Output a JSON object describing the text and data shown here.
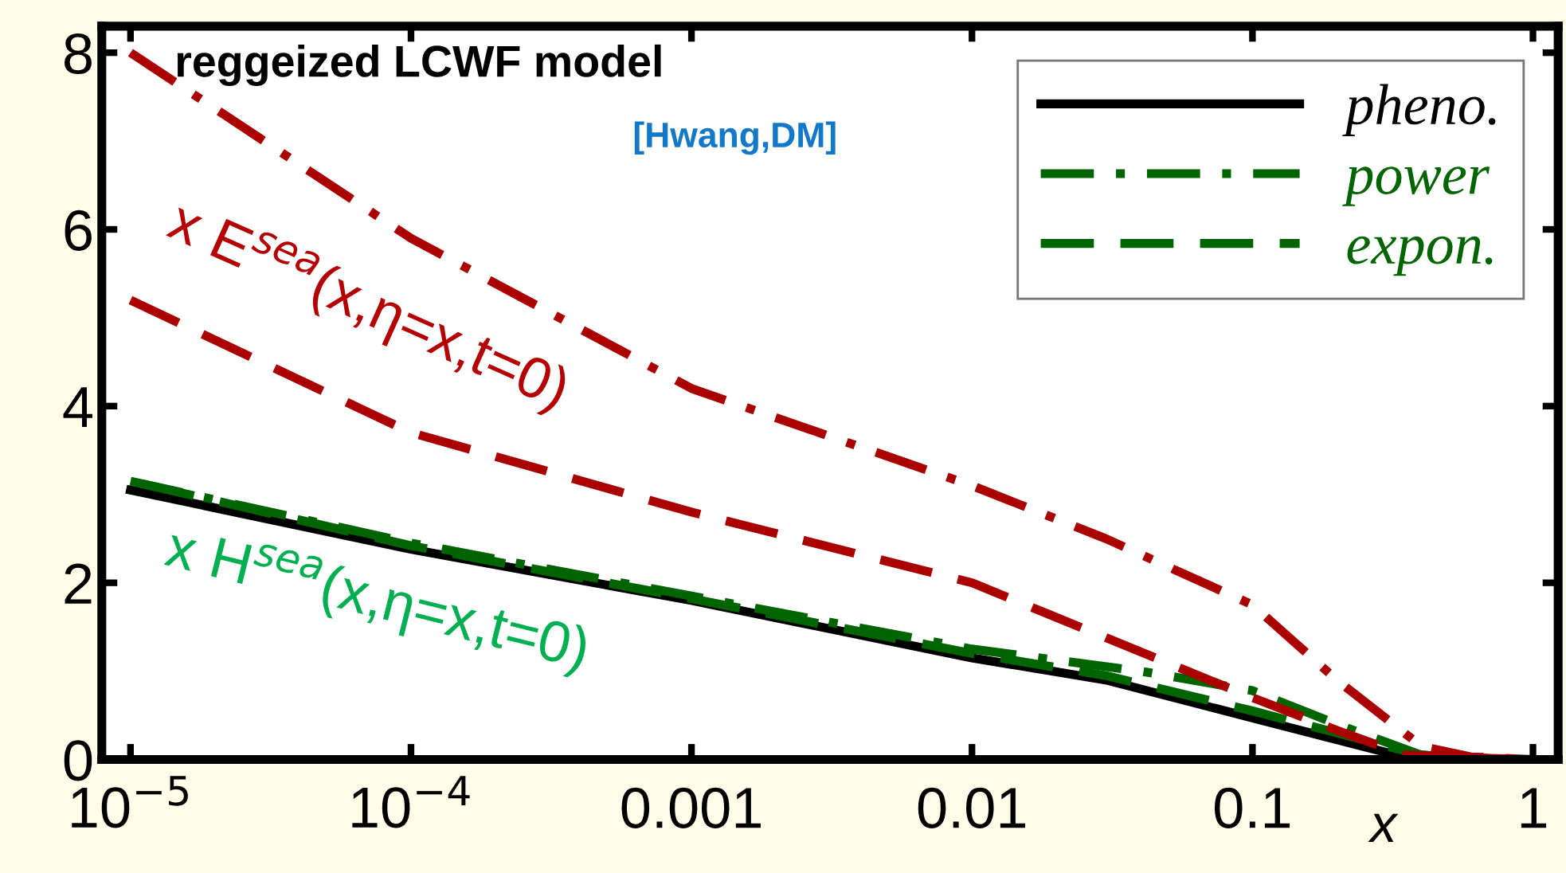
{
  "chart_data": {
    "type": "line",
    "title": "reggeized LCWF model",
    "subtitle": "[Hwang,DM]",
    "xlabel": "x",
    "annotations": [
      "x E$^{sea}$(x,η=x,t=0)",
      "x H$^{sea}$(x,η=x,t=0)"
    ],
    "log": "x",
    "xlim": [
      7.9e-06,
      1.23
    ],
    "ylim": [
      0,
      8.3
    ],
    "xticks": [
      {
        "value": 1e-05,
        "label": "10$^{−5}$"
      },
      {
        "value": 0.0001,
        "label": "10$^{−4}$"
      },
      0.001,
      0.01,
      0.1,
      1
    ],
    "yticks": [
      0,
      2,
      4,
      6,
      8
    ],
    "grid": false,
    "legend": "top right",
    "marker": "none",
    "series": [
      {
        "name": "pheno.",
        "color": "#000000",
        "line_style": "solid",
        "x": [
          1e-05,
          0.0001,
          0.001,
          0.01,
          0.03,
          0.1,
          0.3,
          0.6,
          0.9
        ],
        "values": [
          3.05,
          2.38,
          1.8,
          1.15,
          0.9,
          0.47,
          0.08,
          0.01,
          0
        ]
      },
      {
        "name": "power",
        "color": "#006400",
        "line_style": "dashdot",
        "x": [
          1e-05,
          0.0001,
          0.001,
          0.01,
          0.04,
          0.1,
          0.2,
          0.4,
          0.7,
          1
        ],
        "values": [
          3.15,
          2.45,
          1.85,
          1.25,
          1.0,
          0.78,
          0.4,
          0.05,
          0.01,
          0
        ]
      },
      {
        "name": "expon.",
        "color": "#006400",
        "line_style": "dashed",
        "x": [
          1.1e-05,
          0.0001,
          0.001,
          0.01,
          0.03,
          0.1,
          0.2,
          0.4,
          0.7,
          0.95
        ],
        "values": [
          3.12,
          2.42,
          1.82,
          1.2,
          0.95,
          0.55,
          0.3,
          0.05,
          0.01,
          0
        ]
      },
      {
        "color": "#aa0000",
        "line_style": "dashdot",
        "x": [
          1e-05,
          0.0001,
          0.001,
          0.01,
          0.03,
          0.1,
          0.2,
          0.4,
          0.6,
          1
        ],
        "values": [
          8.0,
          5.9,
          4.2,
          3.1,
          2.5,
          1.75,
          0.9,
          0.15,
          0.03,
          0
        ]
      },
      {
        "color": "#aa0000",
        "line_style": "dashed",
        "x": [
          1e-05,
          0.0001,
          0.001,
          0.01,
          0.1,
          0.2,
          0.35,
          0.6,
          1
        ],
        "values": [
          5.2,
          3.7,
          2.8,
          2.0,
          0.7,
          0.33,
          0.05,
          0.02,
          0
        ]
      }
    ]
  }
}
